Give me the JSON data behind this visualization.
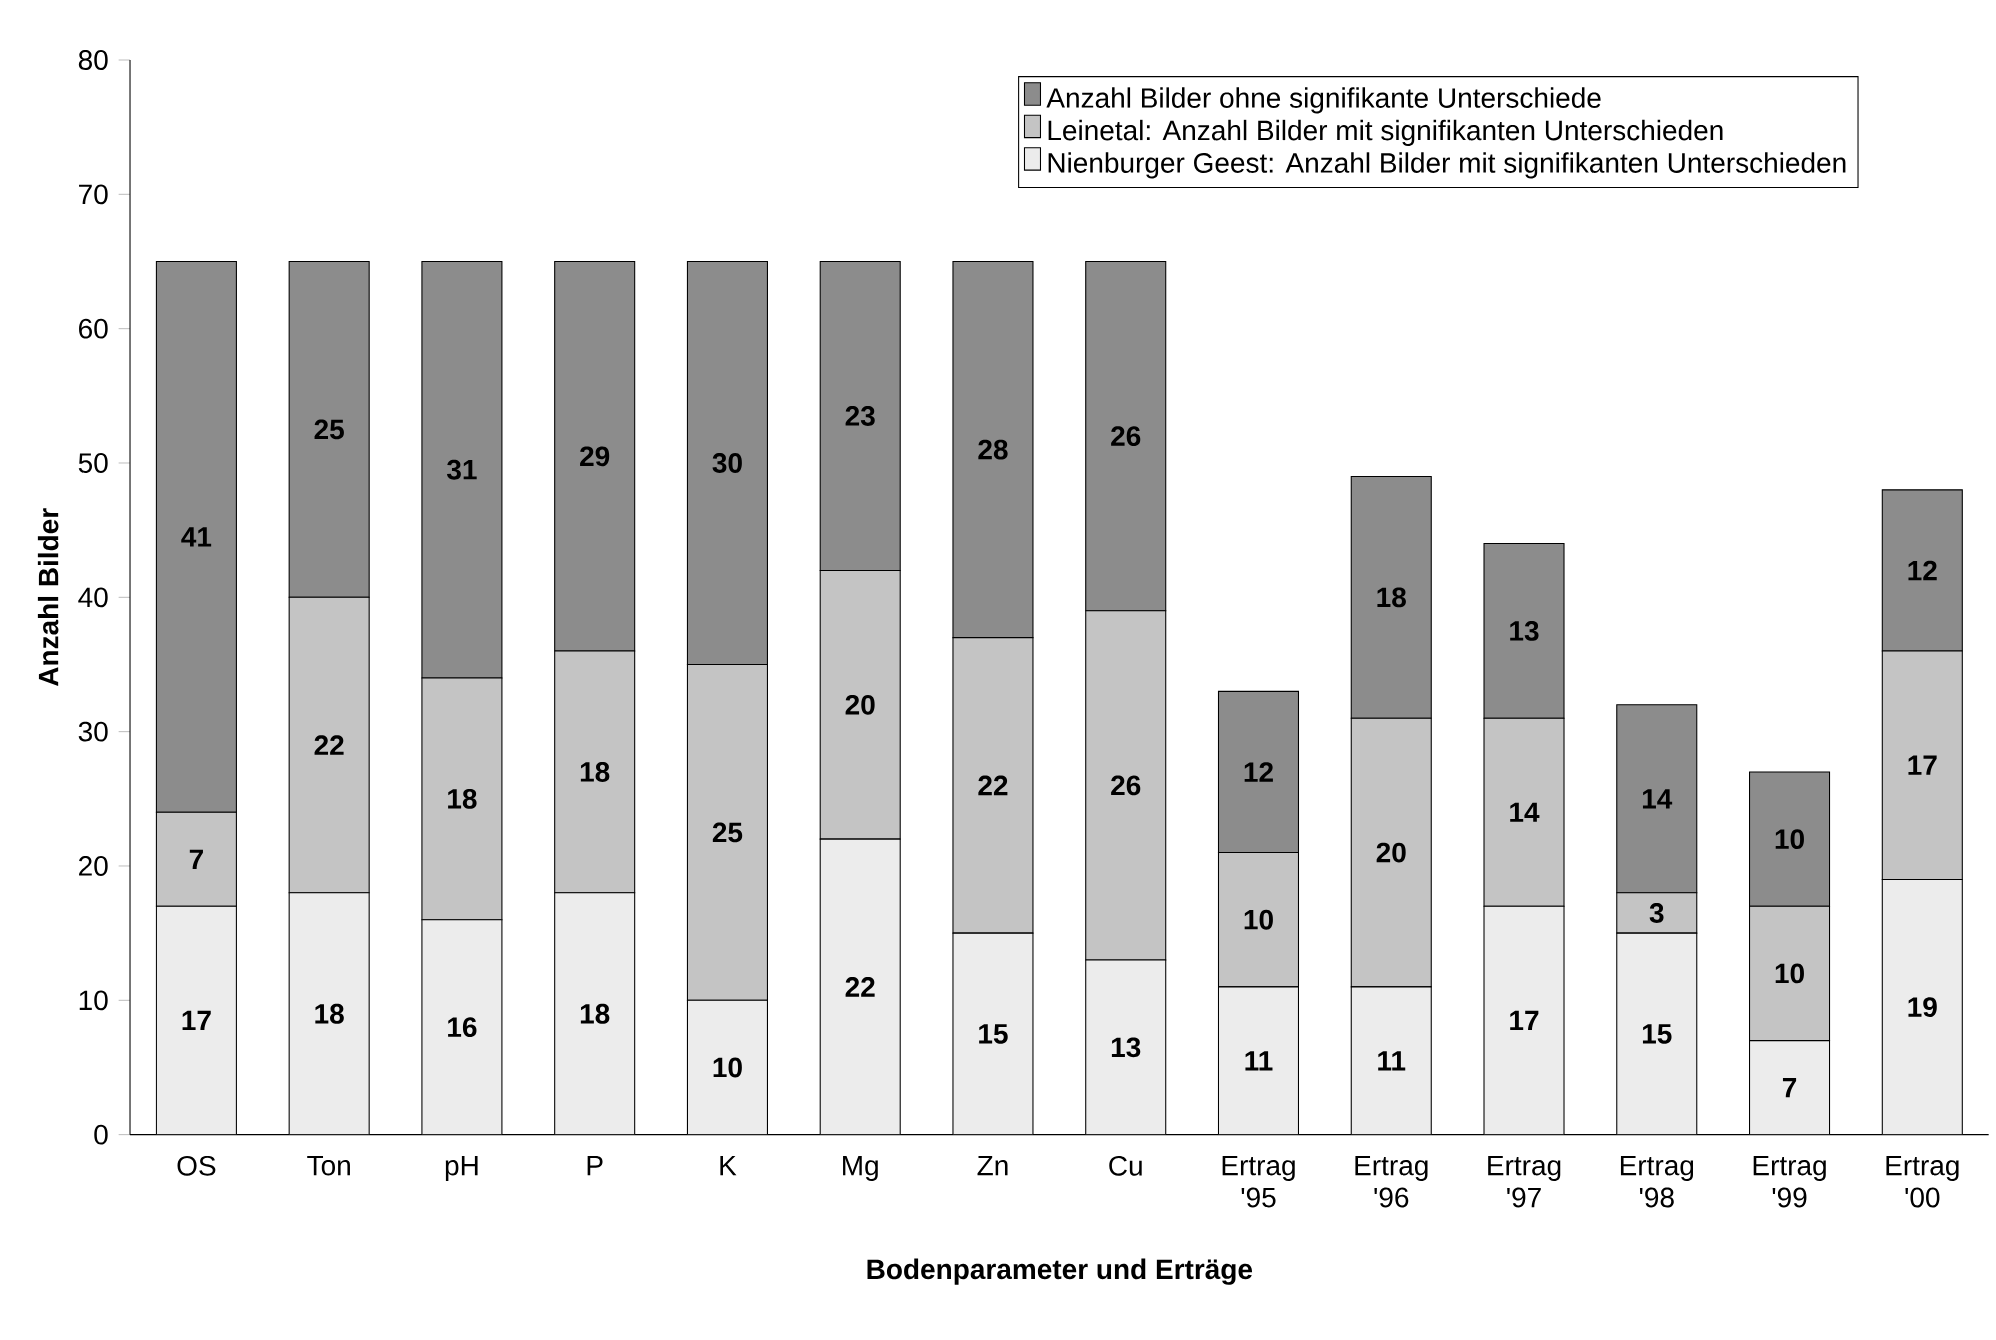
{
  "chart_data": {
    "type": "bar",
    "stacked": true,
    "xlabel": "Bodenparameter und Erträge",
    "ylabel": "Anzahl Bilder",
    "categories": [
      "OS",
      "Ton",
      "pH",
      "P",
      "K",
      "Mg",
      "Zn",
      "Cu",
      "Ertrag '95",
      "Ertrag '96",
      "Ertrag '97",
      "Ertrag '98",
      "Ertrag '99",
      "Ertrag '00"
    ],
    "series": [
      {
        "name": "Nienburger Geest: Anzahl Bilder mit signifikanten Unterschieden",
        "color": "#ececec",
        "values": [
          17,
          18,
          16,
          18,
          10,
          22,
          15,
          13,
          11,
          11,
          17,
          15,
          7,
          19
        ]
      },
      {
        "name": "Leinetal: Anzahl Bilder mit signifikanten Unterschieden",
        "color": "#c4c4c4",
        "values": [
          7,
          22,
          18,
          18,
          25,
          20,
          22,
          26,
          10,
          20,
          14,
          3,
          10,
          17
        ]
      },
      {
        "name": "Anzahl Bilder ohne signifikante Unterschiede",
        "color": "#8c8c8c",
        "values": [
          41,
          25,
          31,
          29,
          30,
          23,
          28,
          26,
          12,
          18,
          13,
          14,
          10,
          12
        ]
      }
    ],
    "ylim": [
      0,
      80
    ],
    "yticks": [
      0,
      10,
      20,
      30,
      40,
      50,
      60,
      70,
      80
    ],
    "grid": false,
    "legend": "top right",
    "data_labels": true
  }
}
